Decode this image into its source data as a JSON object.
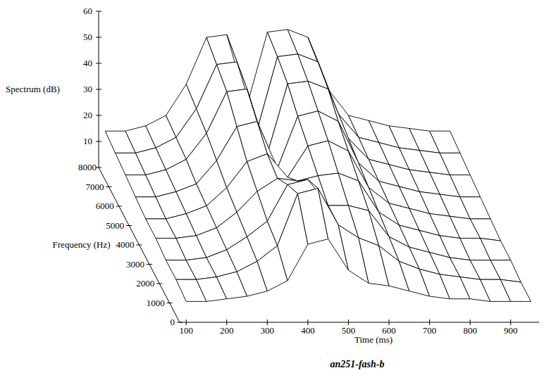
{
  "chart_data": {
    "type": "surface",
    "title": "an251-fash-b",
    "x_label": "Time (ms)",
    "y_label": "Frequency (Hz)",
    "z_label": "Spectrum (dB)",
    "x": [
      100,
      150,
      200,
      250,
      300,
      350,
      400,
      450,
      500,
      550,
      600,
      650,
      700,
      750,
      800,
      850,
      900,
      950
    ],
    "y": [
      0,
      1000,
      2000,
      3000,
      4000,
      5000,
      6000,
      7000,
      8000
    ],
    "z": [
      [
        8,
        8,
        9,
        10,
        12,
        16,
        30,
        32,
        20,
        15,
        14,
        12,
        10,
        9,
        9,
        8,
        8,
        8
      ],
      [
        9,
        9,
        10,
        12,
        16,
        22,
        42,
        44,
        30,
        25,
        22,
        16,
        13,
        11,
        10,
        9,
        9,
        8
      ],
      [
        9,
        9,
        10,
        13,
        18,
        24,
        38,
        40,
        30,
        30,
        28,
        18,
        14,
        12,
        10,
        9,
        9,
        9
      ],
      [
        10,
        10,
        11,
        14,
        20,
        28,
        33,
        32,
        34,
        35,
        32,
        20,
        15,
        13,
        11,
        10,
        10,
        9
      ],
      [
        10,
        10,
        12,
        15,
        22,
        32,
        35,
        26,
        38,
        40,
        36,
        22,
        16,
        14,
        12,
        11,
        10,
        10
      ],
      [
        11,
        11,
        13,
        16,
        25,
        38,
        40,
        22,
        42,
        44,
        40,
        24,
        17,
        15,
        13,
        12,
        11,
        11
      ],
      [
        12,
        12,
        14,
        18,
        28,
        44,
        45,
        20,
        47,
        48,
        45,
        26,
        18,
        16,
        14,
        13,
        12,
        12
      ],
      [
        13,
        13,
        15,
        19,
        30,
        47,
        48,
        22,
        50,
        51,
        48,
        28,
        19,
        17,
        15,
        14,
        13,
        13
      ],
      [
        14,
        14,
        16,
        20,
        32,
        50,
        51,
        24,
        52,
        53,
        50,
        30,
        20,
        18,
        16,
        15,
        14,
        14
      ]
    ],
    "xlim": [
      84,
      970
    ],
    "xticks": [
      100,
      200,
      300,
      400,
      500,
      600,
      700,
      800,
      900
    ],
    "ylim": [
      0,
      8000
    ],
    "yticks": [
      0,
      1000,
      2000,
      3000,
      4000,
      5000,
      6000,
      7000,
      8000
    ],
    "zlim": [
      0,
      60
    ],
    "zticks": [
      10,
      20,
      30,
      40,
      50,
      60
    ]
  }
}
